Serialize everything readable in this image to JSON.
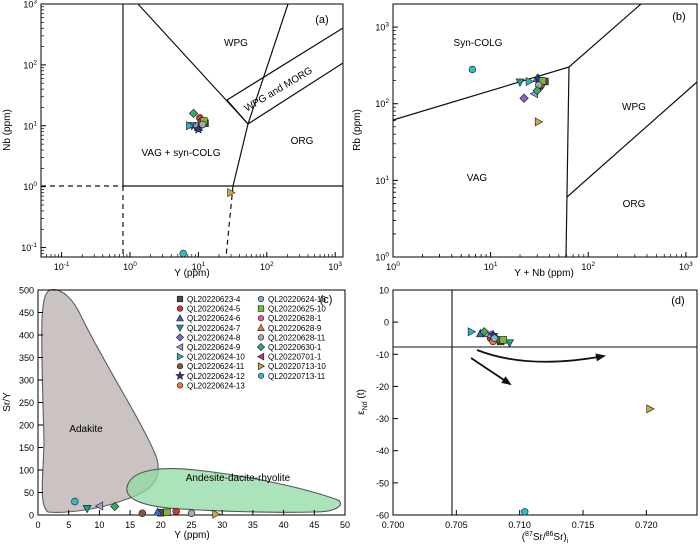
{
  "symbol_styles": [
    {
      "shape": "square",
      "color": "#4a4a4a"
    },
    {
      "shape": "circle",
      "color": "#d9342b"
    },
    {
      "shape": "tri-up",
      "color": "#3a66c4"
    },
    {
      "shape": "tri-down",
      "color": "#1c9b8a"
    },
    {
      "shape": "diamond",
      "color": "#8a63c9"
    },
    {
      "shape": "tri-left",
      "color": "#a39ad6"
    },
    {
      "shape": "tri-right",
      "color": "#2ab4c4"
    },
    {
      "shape": "circle",
      "color": "#7a5a3a"
    },
    {
      "shape": "star",
      "color": "#2b3f8a"
    },
    {
      "shape": "circle",
      "color": "#ec7a3a"
    },
    {
      "shape": "circle",
      "color": "#7fb2d9"
    },
    {
      "shape": "square",
      "color": "#7ab83a"
    },
    {
      "shape": "circle",
      "color": "#e25a9a"
    },
    {
      "shape": "tri-up",
      "color": "#e8822a"
    },
    {
      "shape": "circle",
      "color": "#a9a9a9"
    },
    {
      "shape": "diamond",
      "color": "#2fae6a"
    },
    {
      "shape": "tri-left",
      "color": "#c03a6a"
    },
    {
      "shape": "tri-right",
      "color": "#c8a93a"
    },
    {
      "shape": "circle",
      "color": "#2fbfbf"
    }
  ],
  "legend_entries": [
    "QL20220623-4",
    "QL20220624-5",
    "QL20220624-6",
    "QL20220624-7",
    "QL20220624-8",
    "QL20220624-9",
    "QL20220624-10",
    "QL20220624-11",
    "QL20220624-12",
    "QL20220624-13",
    "QL20220624-18",
    "QL20220625-10",
    "QL20220628-1",
    "QL20220628-9",
    "QL20220628-11",
    "QL20220630-1",
    "QL20220701-1",
    "QL20220713-10",
    "QL20220713-11"
  ],
  "chart_data": [
    {
      "panel": "(a)",
      "type": "scatter",
      "xlabel": "Y (ppm)",
      "ylabel": "Nb (ppm)",
      "xscale": "log",
      "yscale": "log",
      "xlim": [
        0.05,
        1300
      ],
      "ylim": [
        0.07,
        1000
      ],
      "xticks": [
        "10^-1",
        "10^0",
        "10^1",
        "10^2",
        "10^3"
      ],
      "yticks": [
        "10^-1",
        "10^0",
        "10^1",
        "10^2",
        "10^3"
      ],
      "fields": [
        "WPG",
        "WPG and MORG",
        "VAG + syn-COLG",
        "ORG"
      ],
      "points": [
        {
          "x": 12.5,
          "y": 11.0,
          "s": 0
        },
        {
          "x": 10.5,
          "y": 13.5,
          "s": 1
        },
        {
          "x": 10.0,
          "y": 9.5,
          "s": 2
        },
        {
          "x": 8.0,
          "y": 10.0,
          "s": 3
        },
        {
          "x": 9.5,
          "y": 9.5,
          "s": 4
        },
        {
          "x": 9.0,
          "y": 10.0,
          "s": 5
        },
        {
          "x": 7.5,
          "y": 10.0,
          "s": 6
        },
        {
          "x": 11.0,
          "y": 11.5,
          "s": 7
        },
        {
          "x": 10.0,
          "y": 8.8,
          "s": 8
        },
        {
          "x": 12.0,
          "y": 12.0,
          "s": 11
        },
        {
          "x": 11.5,
          "y": 10.5,
          "s": 14
        },
        {
          "x": 8.5,
          "y": 16.0,
          "s": 15
        },
        {
          "x": 30.0,
          "y": 0.8,
          "s": 17
        },
        {
          "x": 6.0,
          "y": 0.08,
          "s": 18
        }
      ]
    },
    {
      "panel": "(b)",
      "type": "scatter",
      "xlabel": "Y + Nb (ppm)",
      "ylabel": "Rb (ppm)",
      "xscale": "log",
      "yscale": "log",
      "xlim": [
        1,
        1300
      ],
      "ylim": [
        1,
        2000
      ],
      "xticks": [
        "10^0",
        "10^1",
        "10^2",
        "10^3"
      ],
      "yticks": [
        "10^0",
        "10^1",
        "10^2",
        "10^3"
      ],
      "fields": [
        "Syn-COLG",
        "WPG",
        "VAG",
        "ORG"
      ],
      "points": [
        {
          "x": 36,
          "y": 195,
          "s": 0
        },
        {
          "x": 32,
          "y": 165,
          "s": 1
        },
        {
          "x": 30,
          "y": 215,
          "s": 2
        },
        {
          "x": 20,
          "y": 190,
          "s": 3
        },
        {
          "x": 22,
          "y": 118,
          "s": 4
        },
        {
          "x": 28,
          "y": 135,
          "s": 5
        },
        {
          "x": 25,
          "y": 195,
          "s": 6
        },
        {
          "x": 33,
          "y": 175,
          "s": 7
        },
        {
          "x": 31,
          "y": 210,
          "s": 8
        },
        {
          "x": 34,
          "y": 198,
          "s": 11
        },
        {
          "x": 31,
          "y": 175,
          "s": 14
        },
        {
          "x": 30,
          "y": 148,
          "s": 15
        },
        {
          "x": 31,
          "y": 58,
          "s": 17
        },
        {
          "x": 6.5,
          "y": 280,
          "s": 18
        }
      ]
    },
    {
      "panel": "(c)",
      "type": "scatter",
      "xlabel": "Y (ppm)",
      "ylabel": "Sr/Y",
      "xlim": [
        0,
        50
      ],
      "ylim": [
        0,
        500
      ],
      "xticks": [
        "0",
        "5",
        "10",
        "15",
        "20",
        "25",
        "30",
        "35",
        "40",
        "45",
        "50"
      ],
      "yticks": [
        "0",
        "50",
        "100",
        "150",
        "200",
        "250",
        "300",
        "350",
        "400",
        "450",
        "500"
      ],
      "fields": [
        "Adakite",
        "Andesite-dacite-rhyolite"
      ],
      "points": [
        {
          "x": 20.0,
          "y": 5,
          "s": 0
        },
        {
          "x": 22.5,
          "y": 8,
          "s": 1
        },
        {
          "x": 19.5,
          "y": 7,
          "s": 2
        },
        {
          "x": 8.0,
          "y": 14,
          "s": 3
        },
        {
          "x": 10.0,
          "y": 20,
          "s": 5
        },
        {
          "x": 12.5,
          "y": 19,
          "s": 15
        },
        {
          "x": 17.0,
          "y": 4,
          "s": 7
        },
        {
          "x": 21.0,
          "y": 6,
          "s": 11
        },
        {
          "x": 25.0,
          "y": 4,
          "s": 14
        },
        {
          "x": 29.0,
          "y": 2,
          "s": 17
        },
        {
          "x": 6.0,
          "y": 30,
          "s": 18
        }
      ]
    },
    {
      "panel": "(d)",
      "type": "scatter",
      "xlabel": "(87Sr/86Sr)i",
      "ylabel": "εNd (t)",
      "xlim": [
        0.7,
        0.724
      ],
      "ylim": [
        -60,
        10
      ],
      "xticks": [
        "0.700",
        "0.705",
        "0.710",
        "0.715",
        "0.720"
      ],
      "yticks": [
        "10",
        "0",
        "-10",
        "-20",
        "-30",
        "-40",
        "-50",
        "-60"
      ],
      "points": [
        {
          "x": 0.7085,
          "y": -6.0,
          "s": 0
        },
        {
          "x": 0.7077,
          "y": -5.0,
          "s": 1
        },
        {
          "x": 0.7069,
          "y": -3.5,
          "s": 2
        },
        {
          "x": 0.7092,
          "y": -6.5,
          "s": 3
        },
        {
          "x": 0.708,
          "y": -4.5,
          "s": 4
        },
        {
          "x": 0.7075,
          "y": -4.0,
          "s": 5
        },
        {
          "x": 0.7062,
          "y": -3.0,
          "s": 6
        },
        {
          "x": 0.7083,
          "y": -5.5,
          "s": 7
        },
        {
          "x": 0.7079,
          "y": -4.0,
          "s": 8
        },
        {
          "x": 0.7079,
          "y": -6.0,
          "s": 9
        },
        {
          "x": 0.708,
          "y": -5.0,
          "s": 10
        },
        {
          "x": 0.7087,
          "y": -5.5,
          "s": 11
        },
        {
          "x": 0.7073,
          "y": -3.5,
          "s": 14
        },
        {
          "x": 0.7072,
          "y": -3.0,
          "s": 15
        },
        {
          "x": 0.7203,
          "y": -27.0,
          "s": 17
        },
        {
          "x": 0.7104,
          "y": -59.0,
          "s": 18
        }
      ]
    }
  ]
}
